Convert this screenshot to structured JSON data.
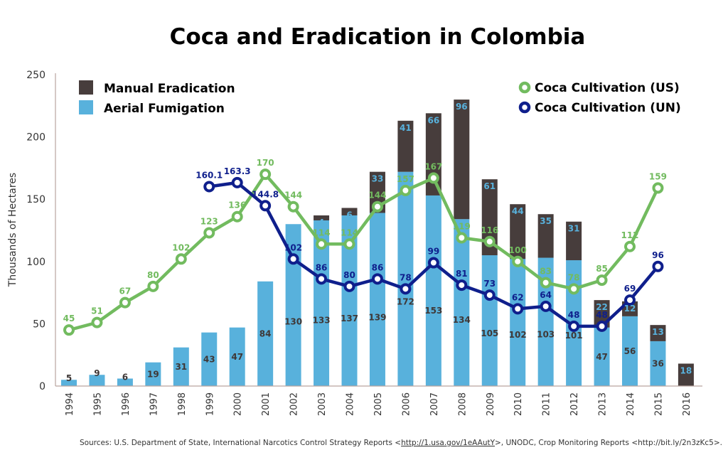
{
  "chart_data": {
    "type": "bar",
    "title": "Coca and Eradication in Colombia",
    "xlabel": "",
    "ylabel": "Thousands of Hectares",
    "ylim": [
      0,
      250
    ],
    "yticks": [
      0,
      50,
      100,
      150,
      200,
      250
    ],
    "grid": false,
    "categories": [
      "1994",
      "1995",
      "1996",
      "1997",
      "1998",
      "1999",
      "2000",
      "2001",
      "2002",
      "2003",
      "2004",
      "2005",
      "2006",
      "2007",
      "2008",
      "2009",
      "2010",
      "2011",
      "2012",
      "2013",
      "2014",
      "2015",
      "2016"
    ],
    "series": [
      {
        "name": "Aerial Fumigation",
        "kind": "stacked-bar",
        "color": "#58b1dc",
        "label_color": "#3f3837",
        "values": [
          5,
          9,
          6,
          19,
          31,
          43,
          47,
          84,
          130,
          133,
          137,
          139,
          172,
          153,
          134,
          105,
          102,
          103,
          101,
          47,
          56,
          36,
          null
        ]
      },
      {
        "name": "Manual Eradication",
        "kind": "stacked-bar",
        "color": "#473d3c",
        "label_color": "#58b1dc",
        "values": [
          null,
          null,
          null,
          null,
          null,
          null,
          null,
          null,
          null,
          4,
          6,
          33,
          41,
          66,
          96,
          61,
          44,
          35,
          31,
          22,
          12,
          13,
          18
        ]
      },
      {
        "name": "Coca Cultivation (US)",
        "kind": "line",
        "color": "#72bb5f",
        "values": [
          45,
          51,
          67,
          80,
          102,
          123,
          136,
          170,
          144,
          114,
          114,
          144,
          157,
          167,
          119,
          116,
          100,
          83,
          78,
          85,
          112,
          159,
          null
        ]
      },
      {
        "name": "Coca Cultivation (UN)",
        "kind": "line",
        "color": "#0f1f8c",
        "values": [
          null,
          null,
          null,
          null,
          null,
          160.1,
          163.3,
          144.8,
          102,
          86,
          80,
          86,
          78,
          99,
          81,
          73,
          62,
          64,
          48,
          48,
          69,
          96,
          null
        ]
      }
    ],
    "legend": [
      {
        "label": "Manual Eradication",
        "position": "top-left"
      },
      {
        "label": "Aerial Fumigation",
        "position": "top-left"
      },
      {
        "label": "Coca Cultivation (US)",
        "position": "top-right"
      },
      {
        "label": "Coca Cultivation (UN)",
        "position": "top-right"
      }
    ]
  },
  "source": {
    "prefix": "Sources: U.S. Department of State, International Narcotics Control Strategy Reports <",
    "link1": "http://1.usa.gov/1eAAutY",
    "middle": ">, UNODC, Crop Monitoring Reports <http://bit.ly/2n3zKc5>."
  }
}
